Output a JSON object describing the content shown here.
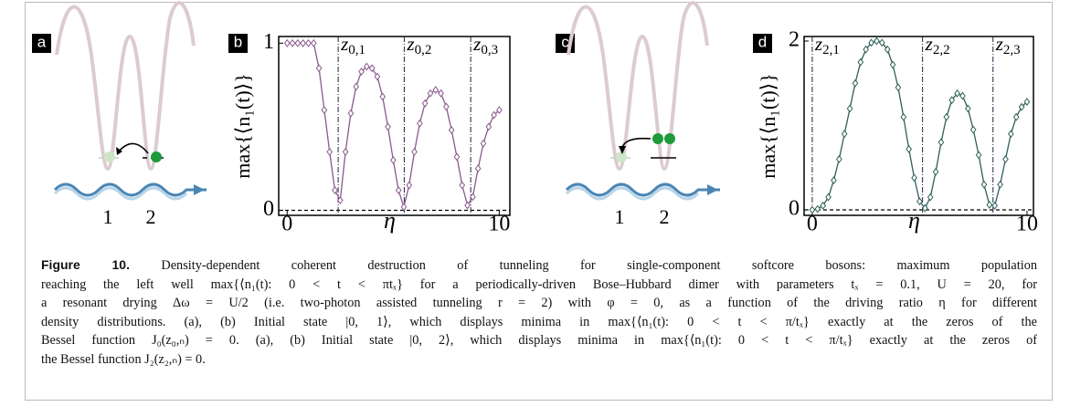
{
  "panels": {
    "a": {
      "label": "a",
      "wells": [
        "1",
        "2"
      ]
    },
    "c": {
      "label": "c",
      "wells": [
        "1",
        "2"
      ]
    }
  },
  "chart_data": [
    {
      "type": "line",
      "label": "b",
      "ylabel": "max{⟨n₁(t)⟩}",
      "xlabel": "η",
      "color": "#8a5a8e",
      "xlim": [
        -0.4,
        10.5
      ],
      "ylim": [
        -0.03,
        1.04
      ],
      "xticks": [
        0,
        10
      ],
      "yticks": [
        0,
        1
      ],
      "annotations": [
        {
          "symbol": "z",
          "subscript": "0,1",
          "x": 2.405
        },
        {
          "symbol": "z",
          "subscript": "0,2",
          "x": 5.52
        },
        {
          "symbol": "z",
          "subscript": "0,3",
          "x": 8.654
        }
      ],
      "x": [
        0,
        0.25,
        0.5,
        0.75,
        1,
        1.25,
        1.5,
        1.75,
        2,
        2.25,
        2.5,
        2.75,
        3,
        3.25,
        3.5,
        3.75,
        4,
        4.25,
        4.5,
        4.75,
        5,
        5.25,
        5.5,
        5.75,
        6,
        6.25,
        6.5,
        6.75,
        7,
        7.25,
        7.5,
        7.75,
        8,
        8.25,
        8.5,
        8.75,
        9,
        9.25,
        9.5,
        9.75,
        10
      ],
      "values": [
        1,
        1,
        1,
        1,
        1,
        1,
        0.85,
        0.6,
        0.35,
        0.12,
        0.06,
        0.35,
        0.58,
        0.74,
        0.83,
        0.86,
        0.85,
        0.8,
        0.68,
        0.5,
        0.3,
        0.12,
        0.02,
        0.15,
        0.35,
        0.52,
        0.64,
        0.7,
        0.72,
        0.7,
        0.62,
        0.48,
        0.32,
        0.15,
        0.03,
        0.08,
        0.25,
        0.4,
        0.5,
        0.57,
        0.6
      ]
    },
    {
      "type": "line",
      "label": "d",
      "ylabel": "max{⟨n₁(t)⟩}",
      "xlabel": "η",
      "color": "#2f5f58",
      "xlim": [
        -0.38,
        10.3
      ],
      "ylim": [
        -0.065,
        2.054
      ],
      "xticks": [
        0,
        10
      ],
      "yticks": [
        0,
        2
      ],
      "annotations": [
        {
          "symbol": "z",
          "subscript": "2,1",
          "x": 0
        },
        {
          "symbol": "z",
          "subscript": "2,2",
          "x": 5.136
        },
        {
          "symbol": "z",
          "subscript": "2,3",
          "x": 8.417
        }
      ],
      "x": [
        0,
        0.25,
        0.5,
        0.75,
        1,
        1.25,
        1.5,
        1.75,
        2,
        2.25,
        2.5,
        2.75,
        3,
        3.25,
        3.5,
        3.75,
        4,
        4.25,
        4.5,
        4.75,
        5,
        5.25,
        5.5,
        5.75,
        6,
        6.25,
        6.5,
        6.75,
        7,
        7.25,
        7.5,
        7.75,
        8,
        8.25,
        8.5,
        8.75,
        9,
        9.25,
        9.5,
        9.75,
        10
      ],
      "values": [
        0,
        0.01,
        0.05,
        0.15,
        0.35,
        0.6,
        0.9,
        1.2,
        1.5,
        1.75,
        1.9,
        1.98,
        2,
        1.98,
        1.9,
        1.72,
        1.45,
        1.1,
        0.72,
        0.38,
        0.1,
        0.02,
        0.15,
        0.45,
        0.8,
        1.1,
        1.3,
        1.38,
        1.35,
        1.2,
        0.95,
        0.65,
        0.3,
        0.06,
        0.05,
        0.3,
        0.6,
        0.9,
        1.1,
        1.22,
        1.28
      ]
    }
  ],
  "caption": {
    "label": "Figure 10.",
    "lines": [
      "Density-dependent coherent destruction of tunneling for single-component softcore bosons: maximum population",
      "reaching the left well max{⟨n₁(t): 0 < t < πtₓ} for a periodically-driven Bose–Hubbard dimer with parameters tₓ = 0.1, U = 20, for",
      "a resonant drying Δω = U/2 (i.e. two-photon assisted tunneling r = 2) with φ = 0, as a function of the driving ratio η for different",
      "density distributions. (a), (b) Initial state |0, 1⟩, which displays minima in max{⟨n₁(t): 0 < t < π/tₓ} exactly at the zeros of the",
      "Bessel function J₀(z₀,ₙ) = 0. (a), (b) Initial state |0, 2⟩, which displays minima in max{⟨n₁(t): 0 < t < π/tₓ} exactly at the zeros of",
      "the Bessel function J₂(z₂,ₙ) = 0."
    ]
  }
}
